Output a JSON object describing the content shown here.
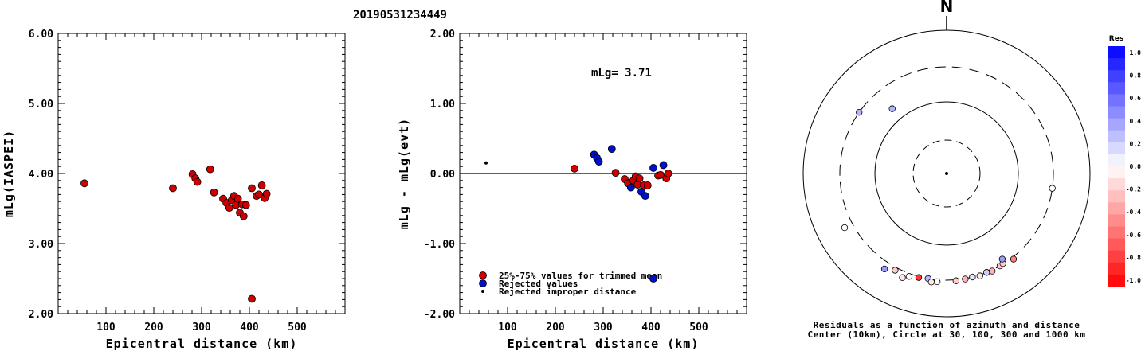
{
  "title": "20190531234449",
  "colors": {
    "red": "#d00000",
    "blue": "#0010c8",
    "black": "#000000"
  },
  "chart_data": [
    {
      "type": "scatter",
      "ylabel": "mLg(IASPEI)",
      "xlabel": "Epicentral distance (km)",
      "xlim": [
        0,
        600
      ],
      "ylim": [
        2.0,
        6.0
      ],
      "xticks": [
        "100",
        "200",
        "300",
        "400",
        "500"
      ],
      "yticks": [
        "2.00",
        "3.00",
        "4.00",
        "5.00",
        "6.00"
      ],
      "points": [
        [
          55,
          3.86
        ],
        [
          240,
          3.79
        ],
        [
          281,
          3.99
        ],
        [
          287,
          3.93
        ],
        [
          291,
          3.88
        ],
        [
          318,
          4.06
        ],
        [
          326,
          3.73
        ],
        [
          345,
          3.64
        ],
        [
          352,
          3.58
        ],
        [
          358,
          3.51
        ],
        [
          363,
          3.62
        ],
        [
          368,
          3.68
        ],
        [
          372,
          3.55
        ],
        [
          376,
          3.64
        ],
        [
          380,
          3.44
        ],
        [
          385,
          3.56
        ],
        [
          388,
          3.39
        ],
        [
          393,
          3.55
        ],
        [
          405,
          3.79
        ],
        [
          405,
          2.21
        ],
        [
          415,
          3.68
        ],
        [
          420,
          3.7
        ],
        [
          426,
          3.83
        ],
        [
          432,
          3.65
        ],
        [
          436,
          3.71
        ]
      ]
    },
    {
      "type": "scatter",
      "ylabel": "mLg - mLg(evt)",
      "xlabel": "Epicentral distance (km)",
      "annotation": "mLg= 3.71",
      "xlim": [
        0,
        600
      ],
      "ylim": [
        -2.0,
        2.0
      ],
      "xticks": [
        "100",
        "200",
        "300",
        "400",
        "500"
      ],
      "yticks": [
        "-2.00",
        "-1.00",
        "0.00",
        "1.00",
        "2.00"
      ],
      "legend": [
        {
          "label": "25%-75% values for trimmed mean",
          "color": "red"
        },
        {
          "label": "Rejected values",
          "color": "blue"
        },
        {
          "label": "Rejected improper distance",
          "color": "black"
        }
      ],
      "points_trimmed": [
        [
          240,
          0.07
        ],
        [
          326,
          0.01
        ],
        [
          345,
          -0.08
        ],
        [
          352,
          -0.14
        ],
        [
          363,
          -0.1
        ],
        [
          368,
          -0.04
        ],
        [
          372,
          -0.16
        ],
        [
          376,
          -0.07
        ],
        [
          385,
          -0.17
        ],
        [
          393,
          -0.17
        ],
        [
          415,
          -0.03
        ],
        [
          420,
          -0.02
        ],
        [
          432,
          -0.07
        ],
        [
          436,
          0.0
        ]
      ],
      "points_rejected": [
        [
          281,
          0.27
        ],
        [
          287,
          0.22
        ],
        [
          291,
          0.17
        ],
        [
          318,
          0.35
        ],
        [
          358,
          -0.2
        ],
        [
          380,
          -0.26
        ],
        [
          388,
          -0.32
        ],
        [
          405,
          0.08
        ],
        [
          405,
          -1.5
        ],
        [
          426,
          0.12
        ]
      ],
      "points_improper": [
        [
          55,
          0.15
        ]
      ]
    },
    {
      "type": "polar",
      "north_label": "N",
      "caption_line1": "Residuals as a function of azimuth and distance",
      "caption_line2": "Center (10km), Circle at 30, 100, 300 and 1000 km",
      "colorbar_title": "Res",
      "colorbar_ticks": [
        "1.0",
        "0.8",
        "0.6",
        "0.4",
        "0.2",
        "0.0",
        "-0.2",
        "-0.4",
        "-0.6",
        "-0.8",
        "-1.0"
      ],
      "points": [
        [
          -55,
          300,
          0.3
        ],
        [
          98,
          300,
          0.0
        ],
        [
          -40,
          150,
          0.3
        ],
        [
          -118,
          400,
          0.0
        ],
        [
          -147,
          380,
          0.4
        ],
        [
          -152,
          330,
          -0.2
        ],
        [
          -157,
          370,
          -0.1
        ],
        [
          -160,
          330,
          0.0
        ],
        [
          -165,
          310,
          -0.8
        ],
        [
          -170,
          300,
          0.3
        ],
        [
          -172,
          330,
          -0.1
        ],
        [
          -175,
          320,
          0.0
        ],
        [
          175,
          310,
          -0.2
        ],
        [
          170,
          305,
          -0.3
        ],
        [
          166,
          300,
          0.1
        ],
        [
          162,
          310,
          -0.1
        ],
        [
          158,
          300,
          0.2
        ],
        [
          155,
          310,
          -0.3
        ],
        [
          150,
          300,
          -0.2
        ],
        [
          148,
          295,
          -0.2
        ],
        [
          142,
          320,
          -0.5
        ],
        [
          147,
          260,
          0.4
        ]
      ]
    }
  ]
}
